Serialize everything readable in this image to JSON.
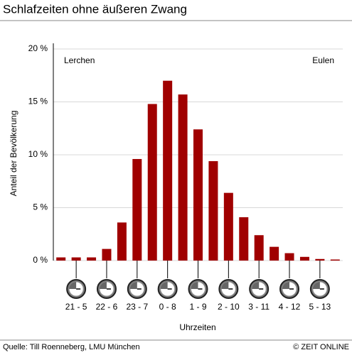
{
  "chart_data": {
    "type": "bar",
    "title": "Schlafzeiten ohne äußeren Zwang",
    "y_label": "Anteil der Bevölkerung",
    "x_label": "Uhrzeiten",
    "annotations": [
      "Lerchen",
      "Eulen"
    ],
    "source": "Quelle: Till Roenneberg, LMU München",
    "credit": "© ZEIT ONLINE",
    "categories": [
      null,
      "21 - 5",
      null,
      "22 - 6",
      null,
      "23 - 7",
      null,
      "0 - 8",
      null,
      "1 - 9",
      null,
      "2 - 10",
      null,
      "3 - 11",
      null,
      "4 - 12",
      null,
      "5 - 13",
      null
    ],
    "values": [
      0.3,
      0.3,
      0.3,
      1.1,
      3.6,
      9.6,
      14.8,
      17.0,
      15.7,
      12.4,
      9.4,
      6.4,
      4.1,
      2.4,
      1.3,
      0.7,
      0.35,
      0.15,
      0.1
    ],
    "color": "#a00000",
    "ylim": [
      0,
      20
    ],
    "yticks": [
      {
        "value": 0,
        "label": "0 %"
      },
      {
        "value": 5,
        "label": "5 %"
      },
      {
        "value": 10,
        "label": "10 %"
      },
      {
        "value": 15,
        "label": "15 %"
      },
      {
        "value": 20,
        "label": "20 %"
      }
    ],
    "grid": true
  }
}
